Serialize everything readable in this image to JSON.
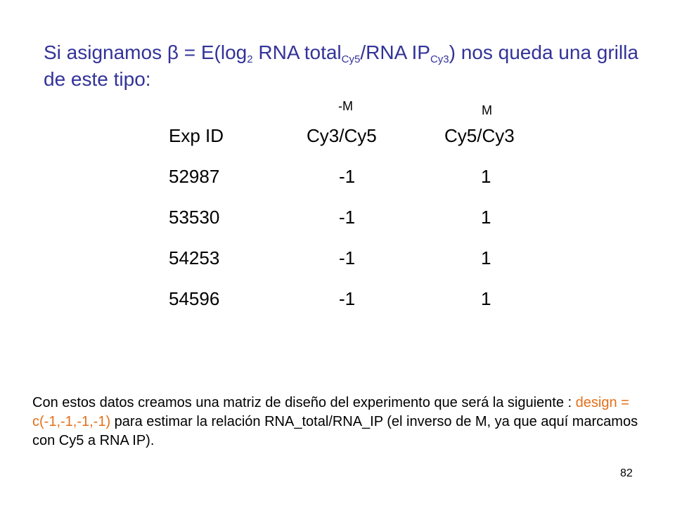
{
  "title": {
    "part1": "Si asignamos β = E(log",
    "sub1": "2",
    "part2": " RNA total",
    "sub2": "Cy5",
    "part3": "/RNA IP",
    "sub3": "Cy3",
    "part4": ") nos queda una grilla de este tipo:"
  },
  "column_marks": [
    "-M",
    "M"
  ],
  "grid": {
    "headers": [
      "Exp ID",
      "Cy3/Cy5",
      "Cy5/Cy3"
    ],
    "rows": [
      [
        "52987",
        "-1",
        "1"
      ],
      [
        "53530",
        "-1",
        "1"
      ],
      [
        "54253",
        "-1",
        "1"
      ],
      [
        "54596",
        "-1",
        "1"
      ]
    ]
  },
  "footer": {
    "before": "Con estos datos creamos una matriz de diseño del experimento que será la siguiente : ",
    "highlight": " design = c(-1,-1,-1,-1)",
    "after": "  para estimar la relación RNA_total/RNA_IP (el inverso de M, ya que aquí marcamos con Cy5 a RNA IP)."
  },
  "page_number": "82",
  "colors": {
    "title": "#333399",
    "highlight": "#e3701a"
  }
}
